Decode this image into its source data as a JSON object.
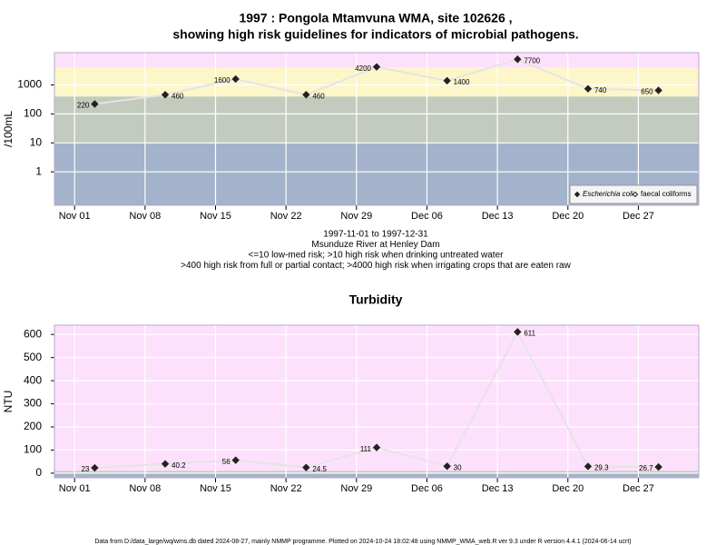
{
  "chart_data": [
    {
      "type": "line",
      "title": [
        "1997 : Pongola Mtamvuna WMA, site 102626 ,",
        "showing high risk guidelines for indicators of microbial pathogens."
      ],
      "subtitle": [
        "1997-11-01 to 1997-12-31",
        "Msunduze River at Henley Dam",
        "<=10 low-med risk; >10 high risk when drinking untreated water",
        ">400 high risk from full or partial contact; >4000 high risk when irrigating crops that are eaten raw"
      ],
      "y_label": "/100mL",
      "log_y": true,
      "grid": true,
      "legend": "lower right",
      "x": [
        "1997-11-03",
        "1997-11-10",
        "1997-11-17",
        "1997-11-24",
        "1997-12-01",
        "1997-12-08",
        "1997-12-15",
        "1997-12-22",
        "1997-12-29"
      ],
      "series": [
        {
          "name": "Escherichia coli",
          "color": "#222222",
          "marker": "filled",
          "values": [
            220,
            460,
            1600,
            460,
            4200,
            1400,
            7700,
            740,
            650
          ]
        },
        {
          "name": "faecal coliforms",
          "color": "#222222",
          "marker": "open",
          "values": [
            null,
            null,
            null,
            null,
            null,
            null,
            null,
            null,
            null
          ]
        }
      ],
      "xlim": [
        "1997-10-30",
        "1998-01-02"
      ],
      "xticks": [
        {
          "value": "1997-11-01",
          "label": "Nov 01"
        },
        {
          "value": "1997-11-08",
          "label": "Nov 08"
        },
        {
          "value": "1997-11-15",
          "label": "Nov 15"
        },
        {
          "value": "1997-11-22",
          "label": "Nov 22"
        },
        {
          "value": "1997-11-29",
          "label": "Nov 29"
        },
        {
          "value": "1997-12-06",
          "label": "Dec 06"
        },
        {
          "value": "1997-12-13",
          "label": "Dec 13"
        },
        {
          "value": "1997-12-20",
          "label": "Dec 20"
        },
        {
          "value": "1997-12-27",
          "label": "Dec 27"
        }
      ],
      "ylim": [
        0.07,
        13000
      ],
      "yticks": [
        1,
        10,
        100,
        1000
      ],
      "band_limits": [
        10,
        400,
        4000
      ],
      "band_colors": [
        "#a3b3cb",
        "#c3cbbf",
        "#fcf6c8",
        "#fde0fb"
      ]
    },
    {
      "type": "line",
      "title": [
        "Turbidity"
      ],
      "y_label": "NTU",
      "log_y": false,
      "grid": true,
      "x": [
        "1997-11-03",
        "1997-11-10",
        "1997-11-17",
        "1997-11-24",
        "1997-12-01",
        "1997-12-08",
        "1997-12-15",
        "1997-12-22",
        "1997-12-29"
      ],
      "values": [
        23,
        40.2,
        56,
        24.5,
        111,
        30,
        611,
        29.3,
        26.7
      ],
      "color": "#222222",
      "xlim": [
        "1997-10-30",
        "1998-01-02"
      ],
      "xticks": [
        {
          "value": "1997-11-01",
          "label": "Nov 01"
        },
        {
          "value": "1997-11-08",
          "label": "Nov 08"
        },
        {
          "value": "1997-11-15",
          "label": "Nov 15"
        },
        {
          "value": "1997-11-22",
          "label": "Nov 22"
        },
        {
          "value": "1997-11-29",
          "label": "Nov 29"
        },
        {
          "value": "1997-12-06",
          "label": "Dec 06"
        },
        {
          "value": "1997-12-13",
          "label": "Dec 13"
        },
        {
          "value": "1997-12-20",
          "label": "Dec 20"
        },
        {
          "value": "1997-12-27",
          "label": "Dec 27"
        }
      ],
      "ylim": [
        -20,
        640
      ],
      "yticks": [
        0,
        100,
        200,
        300,
        400,
        500,
        600
      ],
      "band_limits": [
        1,
        10
      ],
      "band_colors": [
        "#a3b3cb",
        "#c3cbbf",
        "#fde0fb"
      ]
    }
  ],
  "footer": "Data from D:/data_large/wq/wms.db dated 2024-08-27, mainly NMMP programme. Plotted on 2024-10-24 18:02:48 using NMMP_WMA_web.R ver 9.3 under R version 4.4.1 (2024-06-14 ucrt)"
}
